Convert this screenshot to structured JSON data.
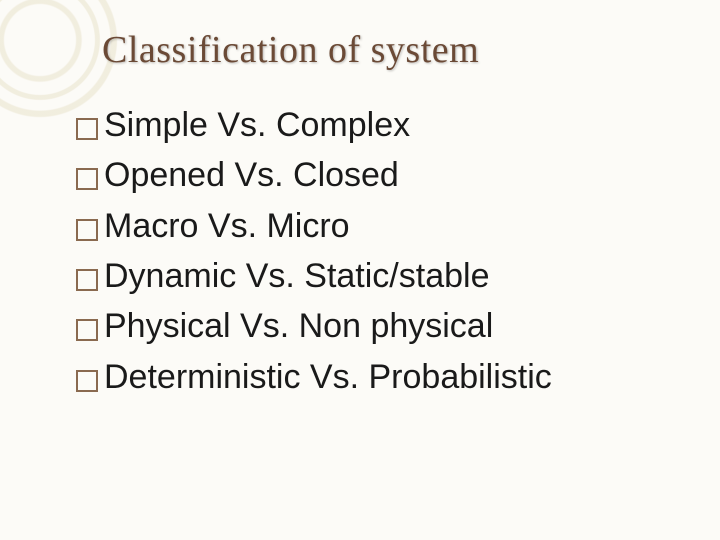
{
  "slide": {
    "title": "Classification of system",
    "bullets": [
      "Simple Vs. Complex",
      "Opened Vs. Closed",
      "Macro Vs. Micro",
      "Dynamic Vs. Static/stable",
      "Physical Vs. Non physical",
      "Deterministic Vs. Probabilistic"
    ]
  },
  "style": {
    "background_color": "#fcfbf7",
    "title_color": "#6b4a36",
    "title_font": "Georgia serif",
    "title_fontsize_pt": 29,
    "body_color": "#1a1a1a",
    "body_font": "Arial sans-serif",
    "body_fontsize_pt": 26,
    "bullet_border_color": "#8a6a50",
    "decorative_ring_color": "#f0ecdc"
  }
}
